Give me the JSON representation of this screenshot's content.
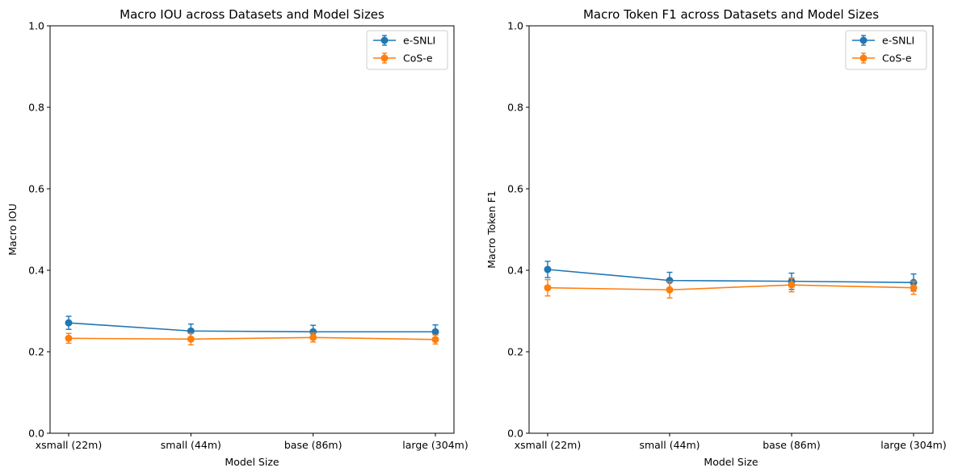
{
  "chart_data": [
    {
      "type": "line",
      "title": "Macro IOU across Datasets and Model Sizes",
      "xlabel": "Model Size",
      "ylabel": "Macro IOU",
      "categories": [
        "xsmall (22m)",
        "small (44m)",
        "base (86m)",
        "large (304m)"
      ],
      "ylim": [
        0,
        1
      ],
      "yticks": [
        "0.0",
        "0.2",
        "0.4",
        "0.6",
        "0.8",
        "1.0"
      ],
      "legend_position": "top-right",
      "grid": false,
      "series": [
        {
          "name": "e-SNLI",
          "color": "#1f77b4",
          "values": [
            0.271,
            0.251,
            0.249,
            0.249
          ],
          "errors": [
            0.016,
            0.017,
            0.016,
            0.017
          ]
        },
        {
          "name": "CoS-e",
          "color": "#ff7f0e",
          "values": [
            0.233,
            0.231,
            0.235,
            0.23
          ],
          "errors": [
            0.012,
            0.014,
            0.011,
            0.011
          ]
        }
      ]
    },
    {
      "type": "line",
      "title": "Macro Token F1 across Datasets and Model Sizes",
      "xlabel": "Model Size",
      "ylabel": "Macro Token F1",
      "categories": [
        "xsmall (22m)",
        "small (44m)",
        "base (86m)",
        "large (304m)"
      ],
      "ylim": [
        0,
        1
      ],
      "yticks": [
        "0.0",
        "0.2",
        "0.4",
        "0.6",
        "0.8",
        "1.0"
      ],
      "legend_position": "top-right",
      "grid": false,
      "series": [
        {
          "name": "e-SNLI",
          "color": "#1f77b4",
          "values": [
            0.402,
            0.375,
            0.373,
            0.37
          ],
          "errors": [
            0.02,
            0.02,
            0.02,
            0.021
          ]
        },
        {
          "name": "CoS-e",
          "color": "#ff7f0e",
          "values": [
            0.357,
            0.352,
            0.364,
            0.357
          ],
          "errors": [
            0.02,
            0.02,
            0.017,
            0.016
          ]
        }
      ]
    }
  ]
}
